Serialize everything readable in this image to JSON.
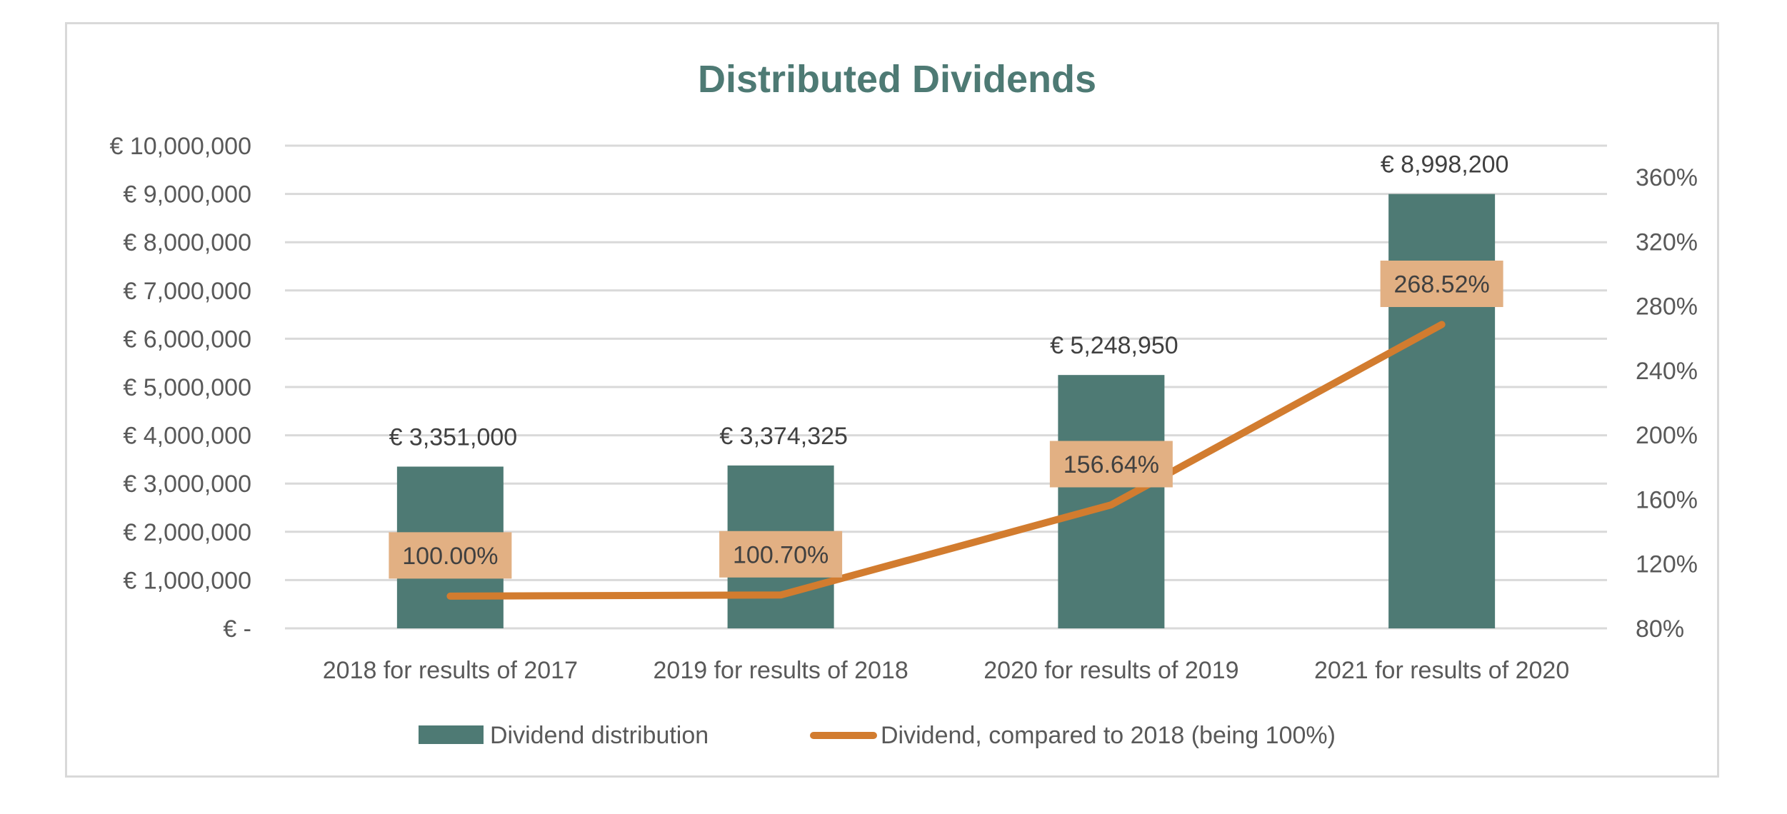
{
  "chart_data": {
    "type": "bar+line",
    "title": "Distributed Dividends",
    "categories": [
      "2018 for results of 2017",
      "2019 for results of 2018",
      "2020 for results of 2019",
      "2021 for results of 2020"
    ],
    "series": [
      {
        "name": "Dividend distribution",
        "type": "bar",
        "axis": "primary",
        "values": [
          3351000,
          3374325,
          5248950,
          8998200
        ],
        "labels": [
          "€ 3,351,000",
          "€ 3,374,325",
          "€ 5,248,950",
          "€ 8,998,200"
        ],
        "color": "#4e7a74"
      },
      {
        "name": "Dividend, compared to 2018 (being 100%)",
        "type": "line",
        "axis": "secondary",
        "values": [
          100.0,
          100.7,
          156.64,
          268.52
        ],
        "labels": [
          "100.00%",
          "100.70%",
          "156.64%",
          "268.52%"
        ],
        "color": "#d27c2f",
        "label_background": "#e2b083"
      }
    ],
    "y_primary": {
      "range": [
        0,
        10000000
      ],
      "ticks": [
        0,
        1000000,
        2000000,
        3000000,
        4000000,
        5000000,
        6000000,
        7000000,
        8000000,
        9000000,
        10000000
      ],
      "tick_labels": [
        "€ -",
        "€ 1,000,000",
        "€ 2,000,000",
        "€ 3,000,000",
        "€ 4,000,000",
        "€ 5,000,000",
        "€ 6,000,000",
        "€ 7,000,000",
        "€ 8,000,000",
        "€ 9,000,000",
        "€ 10,000,000"
      ]
    },
    "y_secondary": {
      "range": [
        80,
        360
      ],
      "ticks": [
        80,
        120,
        160,
        200,
        240,
        280,
        320,
        360
      ],
      "tick_labels": [
        "80%",
        "120%",
        "160%",
        "200%",
        "240%",
        "280%",
        "320%",
        "360%"
      ]
    },
    "grid": true,
    "legend_position": "bottom",
    "xlabel": "",
    "ylabel": ""
  }
}
